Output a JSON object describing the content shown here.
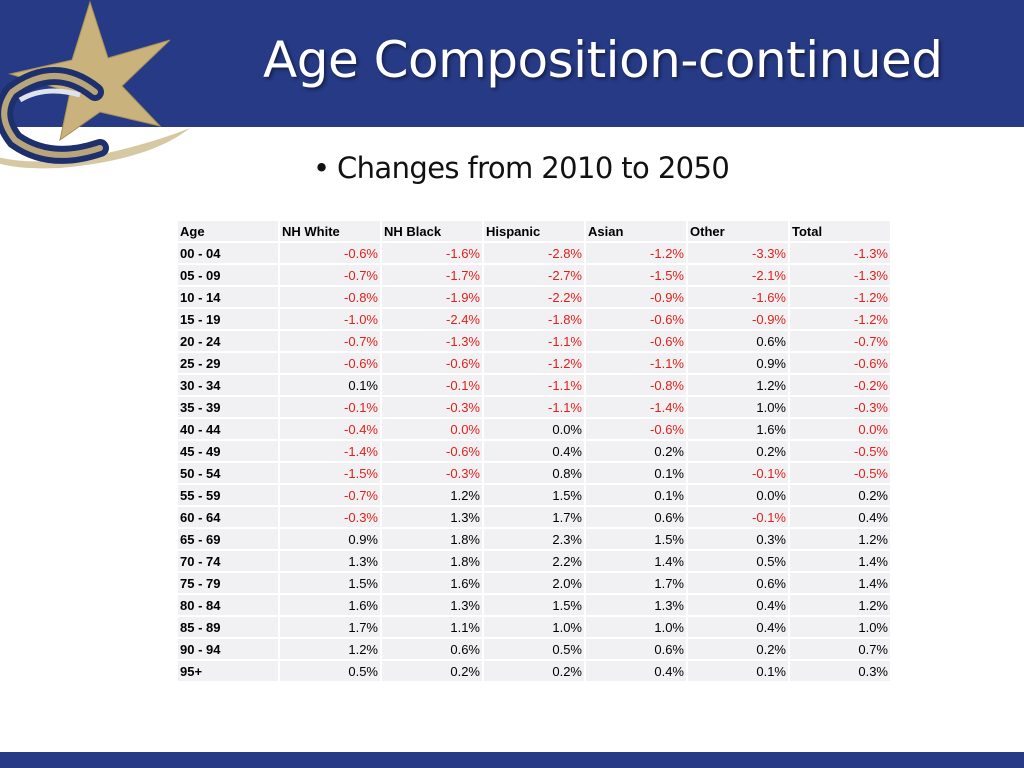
{
  "slide": {
    "title": "Age Composition-continued",
    "bullet": "Changes from 2010 to 2050"
  },
  "colors": {
    "header": "#263a85",
    "negative": "#e0201a",
    "logo_gold": "#c9b27b"
  },
  "table": {
    "headers": [
      "Age",
      "NH White",
      "NH Black",
      "Hispanic",
      "Asian",
      "Other",
      "Total"
    ],
    "rows": [
      [
        "00 - 04",
        "-0.6%",
        "-1.6%",
        "-2.8%",
        "-1.2%",
        "-3.3%",
        "-1.3%"
      ],
      [
        "05 - 09",
        "-0.7%",
        "-1.7%",
        "-2.7%",
        "-1.5%",
        "-2.1%",
        "-1.3%"
      ],
      [
        "10 - 14",
        "-0.8%",
        "-1.9%",
        "-2.2%",
        "-0.9%",
        "-1.6%",
        "-1.2%"
      ],
      [
        "15 - 19",
        "-1.0%",
        "-2.4%",
        "-1.8%",
        "-0.6%",
        "-0.9%",
        "-1.2%"
      ],
      [
        "20 - 24",
        "-0.7%",
        "-1.3%",
        "-1.1%",
        "-0.6%",
        "0.6%",
        "-0.7%"
      ],
      [
        "25 - 29",
        "-0.6%",
        "-0.6%",
        "-1.2%",
        "-1.1%",
        "0.9%",
        "-0.6%"
      ],
      [
        "30 - 34",
        "0.1%",
        "-0.1%",
        "-1.1%",
        "-0.8%",
        "1.2%",
        "-0.2%"
      ],
      [
        "35 - 39",
        "-0.1%",
        "-0.3%",
        "-1.1%",
        "-1.4%",
        "1.0%",
        "-0.3%"
      ],
      [
        "40 - 44",
        "-0.4%",
        "0.0%",
        "0.0%",
        "-0.6%",
        "1.6%",
        "0.0%"
      ],
      [
        "45 - 49",
        "-1.4%",
        "-0.6%",
        "0.4%",
        "0.2%",
        "0.2%",
        "-0.5%"
      ],
      [
        "50 - 54",
        "-1.5%",
        "-0.3%",
        "0.8%",
        "0.1%",
        "-0.1%",
        "-0.5%"
      ],
      [
        "55 - 59",
        "-0.7%",
        "1.2%",
        "1.5%",
        "0.1%",
        "0.0%",
        "0.2%"
      ],
      [
        "60 - 64",
        "-0.3%",
        "1.3%",
        "1.7%",
        "0.6%",
        "-0.1%",
        "0.4%"
      ],
      [
        "65 - 69",
        "0.9%",
        "1.8%",
        "2.3%",
        "1.5%",
        "0.3%",
        "1.2%"
      ],
      [
        "70 - 74",
        "1.3%",
        "1.8%",
        "2.2%",
        "1.4%",
        "0.5%",
        "1.4%"
      ],
      [
        "75 - 79",
        "1.5%",
        "1.6%",
        "2.0%",
        "1.7%",
        "0.6%",
        "1.4%"
      ],
      [
        "80 - 84",
        "1.6%",
        "1.3%",
        "1.5%",
        "1.3%",
        "0.4%",
        "1.2%"
      ],
      [
        "85 - 89",
        "1.7%",
        "1.1%",
        "1.0%",
        "1.0%",
        "0.4%",
        "1.0%"
      ],
      [
        "90 - 94",
        "1.2%",
        "0.6%",
        "0.5%",
        "0.6%",
        "0.2%",
        "0.7%"
      ],
      [
        "95+",
        "0.5%",
        "0.2%",
        "0.2%",
        "0.4%",
        "0.1%",
        "0.3%"
      ]
    ],
    "negative_cells": [
      [
        1,
        1,
        1,
        1,
        1,
        1
      ],
      [
        1,
        1,
        1,
        1,
        1,
        1
      ],
      [
        1,
        1,
        1,
        1,
        1,
        1
      ],
      [
        1,
        1,
        1,
        1,
        1,
        1
      ],
      [
        1,
        1,
        1,
        1,
        0,
        1
      ],
      [
        1,
        1,
        1,
        1,
        0,
        1
      ],
      [
        0,
        1,
        1,
        1,
        0,
        1
      ],
      [
        1,
        1,
        1,
        1,
        0,
        1
      ],
      [
        1,
        1,
        0,
        1,
        0,
        1
      ],
      [
        1,
        1,
        0,
        0,
        0,
        1
      ],
      [
        1,
        1,
        0,
        0,
        1,
        1
      ],
      [
        1,
        0,
        0,
        0,
        0,
        0
      ],
      [
        1,
        0,
        0,
        0,
        1,
        0
      ],
      [
        0,
        0,
        0,
        0,
        0,
        0
      ],
      [
        0,
        0,
        0,
        0,
        0,
        0
      ],
      [
        0,
        0,
        0,
        0,
        0,
        0
      ],
      [
        0,
        0,
        0,
        0,
        0,
        0
      ],
      [
        0,
        0,
        0,
        0,
        0,
        0
      ],
      [
        0,
        0,
        0,
        0,
        0,
        0
      ],
      [
        0,
        0,
        0,
        0,
        0,
        0
      ]
    ]
  }
}
